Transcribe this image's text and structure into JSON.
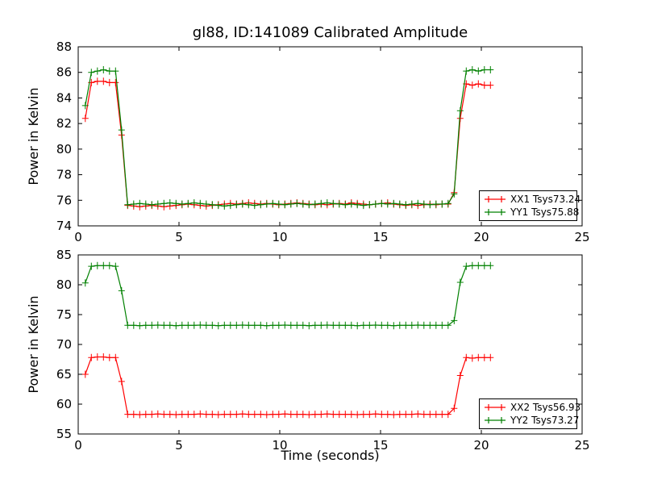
{
  "chart_data": [
    {
      "type": "line",
      "title": "gl88, ID:141089 Calibrated Amplitude",
      "xlabel": "",
      "ylabel": "Power in Kelvin",
      "xlim": [
        0,
        25
      ],
      "ylim": [
        74,
        88
      ],
      "xticks": [
        0,
        5,
        10,
        15,
        20,
        25
      ],
      "yticks": [
        74,
        76,
        78,
        80,
        82,
        84,
        86,
        88
      ],
      "legend_position": "lower right",
      "x": [
        0.35,
        0.65,
        0.95,
        1.25,
        1.55,
        1.85,
        2.15,
        2.45,
        2.75,
        3.05,
        3.35,
        3.65,
        3.95,
        4.25,
        4.55,
        4.85,
        5.15,
        5.45,
        5.75,
        6.05,
        6.35,
        6.65,
        6.95,
        7.25,
        7.55,
        7.85,
        8.15,
        8.45,
        8.75,
        9.05,
        9.35,
        9.65,
        9.95,
        10.25,
        10.55,
        10.85,
        11.15,
        11.45,
        11.75,
        12.05,
        12.35,
        12.65,
        12.95,
        13.25,
        13.55,
        13.85,
        14.15,
        14.45,
        14.75,
        15.05,
        15.35,
        15.65,
        15.95,
        16.25,
        16.55,
        16.85,
        17.15,
        17.45,
        17.75,
        18.05,
        18.35,
        18.65,
        18.95,
        19.25,
        19.55,
        19.85,
        20.15,
        20.45
      ],
      "series": [
        {
          "name": "XX1 Tsys73.24",
          "color": "#ff0000",
          "marker": "+",
          "y": [
            82.4,
            85.2,
            85.3,
            85.3,
            85.2,
            85.2,
            81.1,
            75.6,
            75.55,
            75.5,
            75.55,
            75.6,
            75.55,
            75.5,
            75.55,
            75.6,
            75.65,
            75.7,
            75.65,
            75.6,
            75.55,
            75.6,
            75.65,
            75.7,
            75.75,
            75.7,
            75.75,
            75.8,
            75.75,
            75.7,
            75.75,
            75.7,
            75.65,
            75.7,
            75.75,
            75.8,
            75.75,
            75.7,
            75.65,
            75.7,
            75.65,
            75.7,
            75.75,
            75.7,
            75.8,
            75.75,
            75.7,
            75.65,
            75.7,
            75.75,
            75.8,
            75.7,
            75.65,
            75.6,
            75.65,
            75.6,
            75.65,
            75.7,
            75.65,
            75.7,
            75.7,
            76.6,
            82.4,
            85.1,
            85.0,
            85.1,
            85.0,
            85.0
          ]
        },
        {
          "name": "YY1 Tsys75.88",
          "color": "#008000",
          "marker": "+",
          "y": [
            83.4,
            86.0,
            86.1,
            86.2,
            86.1,
            86.1,
            81.5,
            75.65,
            75.7,
            75.75,
            75.7,
            75.65,
            75.7,
            75.75,
            75.8,
            75.75,
            75.7,
            75.75,
            75.8,
            75.75,
            75.7,
            75.65,
            75.6,
            75.55,
            75.6,
            75.65,
            75.7,
            75.65,
            75.6,
            75.65,
            75.7,
            75.75,
            75.7,
            75.65,
            75.7,
            75.75,
            75.7,
            75.65,
            75.7,
            75.75,
            75.8,
            75.75,
            75.7,
            75.65,
            75.7,
            75.65,
            75.6,
            75.65,
            75.7,
            75.75,
            75.7,
            75.75,
            75.7,
            75.65,
            75.7,
            75.75,
            75.7,
            75.65,
            75.7,
            75.7,
            75.75,
            76.5,
            83.0,
            86.1,
            86.2,
            86.1,
            86.2,
            86.2
          ]
        }
      ]
    },
    {
      "type": "line",
      "title": "",
      "xlabel": "Time (seconds)",
      "ylabel": "Power in Kelvin",
      "xlim": [
        0,
        25
      ],
      "ylim": [
        55,
        85
      ],
      "xticks": [
        0,
        5,
        10,
        15,
        20,
        25
      ],
      "yticks": [
        55,
        60,
        65,
        70,
        75,
        80,
        85
      ],
      "legend_position": "lower right",
      "x": [
        0.35,
        0.65,
        0.95,
        1.25,
        1.55,
        1.85,
        2.15,
        2.45,
        2.75,
        3.05,
        3.35,
        3.65,
        3.95,
        4.25,
        4.55,
        4.85,
        5.15,
        5.45,
        5.75,
        6.05,
        6.35,
        6.65,
        6.95,
        7.25,
        7.55,
        7.85,
        8.15,
        8.45,
        8.75,
        9.05,
        9.35,
        9.65,
        9.95,
        10.25,
        10.55,
        10.85,
        11.15,
        11.45,
        11.75,
        12.05,
        12.35,
        12.65,
        12.95,
        13.25,
        13.55,
        13.85,
        14.15,
        14.45,
        14.75,
        15.05,
        15.35,
        15.65,
        15.95,
        16.25,
        16.55,
        16.85,
        17.15,
        17.45,
        17.75,
        18.05,
        18.35,
        18.65,
        18.95,
        19.25,
        19.55,
        19.85,
        20.15,
        20.45
      ],
      "series": [
        {
          "name": "XX2 Tsys56.93",
          "color": "#ff0000",
          "marker": "+",
          "y": [
            65.0,
            67.8,
            67.9,
            67.9,
            67.8,
            67.8,
            63.8,
            58.3,
            58.3,
            58.25,
            58.3,
            58.3,
            58.35,
            58.3,
            58.3,
            58.25,
            58.3,
            58.3,
            58.3,
            58.35,
            58.3,
            58.3,
            58.25,
            58.3,
            58.3,
            58.3,
            58.35,
            58.3,
            58.3,
            58.3,
            58.25,
            58.3,
            58.3,
            58.35,
            58.3,
            58.3,
            58.3,
            58.25,
            58.3,
            58.3,
            58.35,
            58.3,
            58.3,
            58.3,
            58.3,
            58.25,
            58.3,
            58.3,
            58.35,
            58.3,
            58.3,
            58.25,
            58.3,
            58.3,
            58.3,
            58.35,
            58.3,
            58.3,
            58.3,
            58.3,
            58.3,
            59.3,
            64.8,
            67.8,
            67.7,
            67.8,
            67.8,
            67.8
          ]
        },
        {
          "name": "YY2 Tsys73.27",
          "color": "#008000",
          "marker": "+",
          "y": [
            80.3,
            83.1,
            83.2,
            83.2,
            83.2,
            83.1,
            79.0,
            73.2,
            73.2,
            73.15,
            73.2,
            73.2,
            73.25,
            73.2,
            73.2,
            73.15,
            73.2,
            73.2,
            73.2,
            73.25,
            73.2,
            73.2,
            73.15,
            73.2,
            73.2,
            73.2,
            73.25,
            73.2,
            73.2,
            73.2,
            73.15,
            73.2,
            73.2,
            73.25,
            73.2,
            73.2,
            73.2,
            73.15,
            73.2,
            73.2,
            73.25,
            73.2,
            73.2,
            73.2,
            73.2,
            73.15,
            73.2,
            73.2,
            73.25,
            73.2,
            73.2,
            73.15,
            73.2,
            73.2,
            73.2,
            73.25,
            73.2,
            73.2,
            73.2,
            73.2,
            73.2,
            74.0,
            80.4,
            83.1,
            83.2,
            83.2,
            83.2,
            83.2
          ]
        }
      ]
    }
  ]
}
